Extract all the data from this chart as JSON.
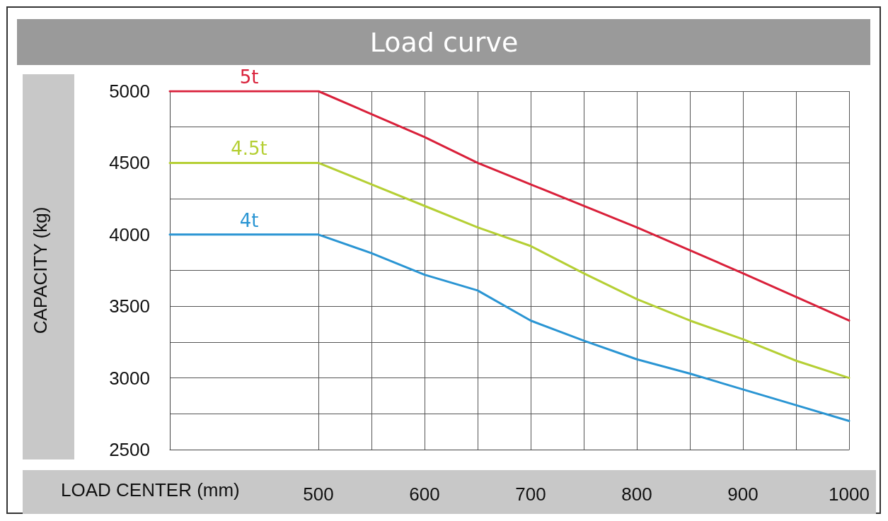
{
  "chart_data": {
    "type": "line",
    "title": "Load curve",
    "xlabel": "LOAD CENTER (mm)",
    "ylabel": "CAPACITY (kg)",
    "xlim": [
      360,
      1000
    ],
    "xticks": [
      500,
      {
        "value": 550,
        "label": null
      },
      600,
      {
        "value": 650,
        "label": null
      },
      700,
      {
        "value": 750,
        "label": null
      },
      800,
      {
        "value": 850,
        "label": null
      },
      900,
      {
        "value": 950,
        "label": null
      },
      1000
    ],
    "ylim": [
      2500,
      5000
    ],
    "yticks": [
      2500,
      {
        "value": 2750,
        "label": null
      },
      3000,
      {
        "value": 3250,
        "label": null
      },
      3500,
      {
        "value": 3750,
        "label": null
      },
      4000,
      {
        "value": 4250,
        "label": null
      },
      4500,
      {
        "value": 4750,
        "label": null
      },
      5000
    ],
    "grid": true,
    "legend": false,
    "marker": "none",
    "line_style": "solid",
    "series": [
      {
        "name": "5t",
        "color": "#d9203a",
        "x": [
          360,
          500,
          600,
          650,
          700,
          800,
          900,
          1000
        ],
        "values": [
          5000,
          5000,
          4680,
          4500,
          4350,
          4050,
          3730,
          3400
        ]
      },
      {
        "name": "4.5t",
        "color": "#b5cf34",
        "x": [
          360,
          500,
          600,
          650,
          700,
          750,
          800,
          850,
          900,
          950,
          1000
        ],
        "values": [
          4500,
          4500,
          4200,
          4050,
          3920,
          3730,
          3550,
          3400,
          3270,
          3120,
          3000
        ]
      },
      {
        "name": "4t",
        "color": "#2a95d3",
        "x": [
          360,
          500,
          550,
          600,
          650,
          700,
          750,
          800,
          850,
          900,
          950,
          1000
        ],
        "values": [
          4000,
          4000,
          3870,
          3720,
          3610,
          3400,
          3260,
          3130,
          3030,
          2920,
          2810,
          2700
        ]
      }
    ]
  }
}
